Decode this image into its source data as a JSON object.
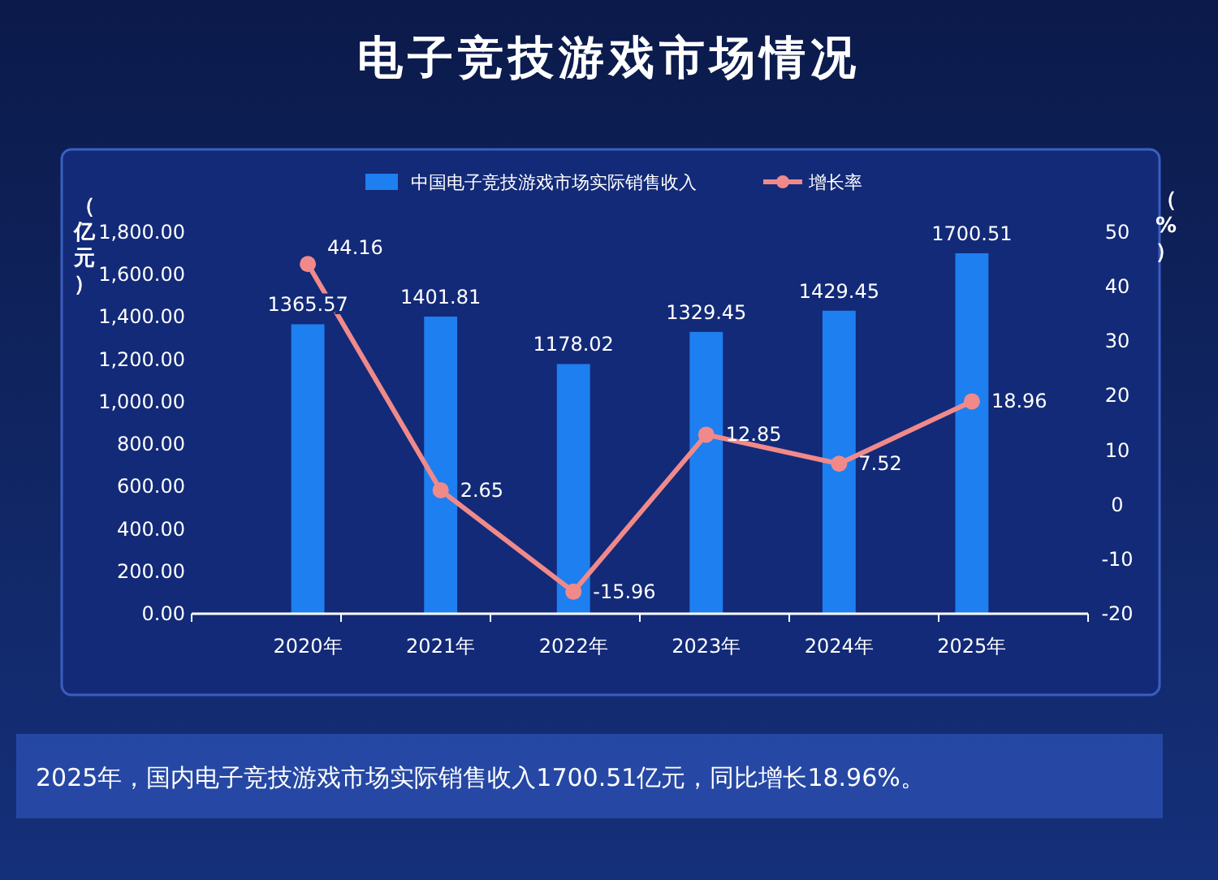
{
  "chart_data": {
    "type": "bar",
    "title": "电子竞技游戏市场情况",
    "categories": [
      "2020年",
      "2021年",
      "2022年",
      "2023年",
      "2024年",
      "2025年"
    ],
    "series": [
      {
        "name": "中国电子竞技游戏市场实际销售收入",
        "color": "#1e7ff0",
        "values": [
          1365.57,
          1401.81,
          1178.02,
          1329.45,
          1429.45,
          1700.51
        ]
      },
      {
        "name": "增长率",
        "type": "line",
        "axis": "y2",
        "color": "#f08a8a",
        "values": [
          44.16,
          2.65,
          -15.96,
          12.85,
          7.52,
          18.96
        ]
      }
    ],
    "ylabel": "（亿元）",
    "y2label": "（%）",
    "ylim": [
      0,
      1800
    ],
    "yticks": [
      {
        "value": 0,
        "label": "0.00"
      },
      {
        "value": 200,
        "label": "200.00"
      },
      {
        "value": 400,
        "label": "400.00"
      },
      {
        "value": 600,
        "label": "600.00"
      },
      {
        "value": 800,
        "label": "800.00"
      },
      {
        "value": 1000,
        "label": "1,000.00"
      },
      {
        "value": 1200,
        "label": "1,200.00"
      },
      {
        "value": 1400,
        "label": "1,400.00"
      },
      {
        "value": 1600,
        "label": "1,600.00"
      },
      {
        "value": 1800,
        "label": "1,800.00"
      }
    ],
    "y2lim": [
      -20,
      50
    ],
    "y2ticks": [
      -20,
      -10,
      0,
      10,
      20,
      30,
      40,
      50
    ],
    "data_labels": true,
    "legend": "top",
    "marker": "circle",
    "grid": false,
    "annotations": [
      "2025年，国内电子竞技游戏市场实际销售收入1700.51亿元，同比增长18.96%。"
    ]
  }
}
